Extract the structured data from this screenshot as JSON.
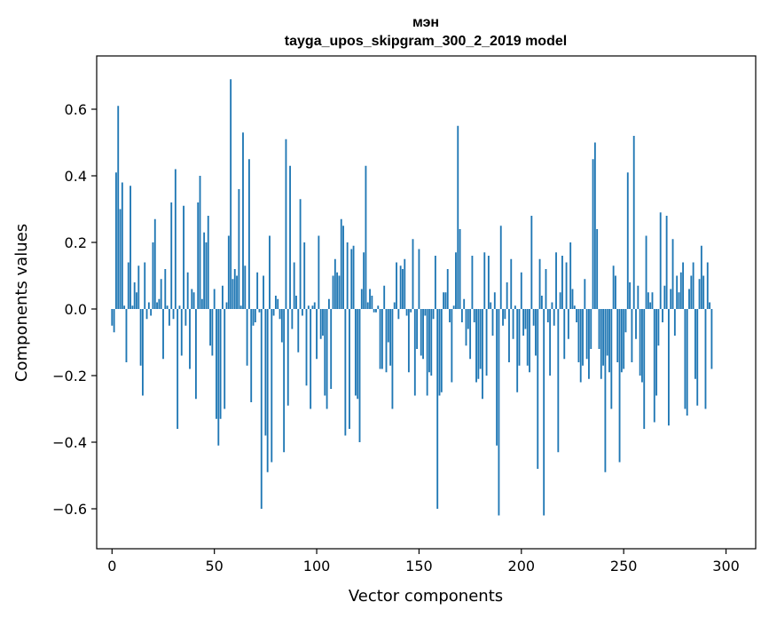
{
  "chart_data": {
    "type": "bar",
    "title_line1": "мэн",
    "title_line2": "tayga_upos_skipgram_300_2_2019 model",
    "xlabel": "Vector components",
    "ylabel": "Components values",
    "xlim": [
      -7.5,
      314.5
    ],
    "ylim": [
      -0.72,
      0.76
    ],
    "x_ticks": [
      0,
      50,
      100,
      150,
      200,
      250,
      300
    ],
    "x_tick_labels": [
      "0",
      "50",
      "100",
      "150",
      "200",
      "250",
      "300"
    ],
    "y_ticks": [
      -0.6,
      -0.4,
      -0.2,
      0.0,
      0.2,
      0.4,
      0.6
    ],
    "y_tick_labels": [
      "−0.6",
      "−0.4",
      "−0.2",
      "0.0",
      "0.2",
      "0.4",
      "0.6"
    ],
    "bar_color": "#1f77b4",
    "values": [
      -0.05,
      -0.07,
      0.41,
      0.61,
      0.3,
      0.38,
      0.01,
      -0.16,
      0.14,
      0.37,
      0.01,
      0.08,
      0.05,
      0.13,
      -0.17,
      -0.26,
      0.14,
      -0.03,
      0.02,
      -0.02,
      0.2,
      0.27,
      0.02,
      0.03,
      0.09,
      -0.15,
      0.12,
      0.01,
      -0.05,
      0.32,
      -0.03,
      0.42,
      -0.36,
      0.01,
      -0.14,
      0.31,
      -0.05,
      0.11,
      -0.18,
      0.06,
      0.05,
      -0.27,
      0.32,
      0.4,
      0.03,
      0.23,
      0.2,
      0.28,
      -0.11,
      -0.14,
      0.06,
      -0.33,
      -0.41,
      -0.33,
      0.07,
      -0.3,
      0.02,
      0.22,
      0.69,
      0.09,
      0.12,
      0.1,
      0.36,
      0.01,
      0.53,
      0.13,
      -0.17,
      0.45,
      -0.28,
      -0.05,
      -0.04,
      0.11,
      -0.01,
      -0.6,
      0.1,
      -0.38,
      -0.49,
      0.22,
      -0.46,
      -0.02,
      0.04,
      0.03,
      -0.03,
      -0.1,
      -0.43,
      0.51,
      -0.29,
      0.43,
      -0.06,
      0.14,
      0.04,
      -0.13,
      0.33,
      -0.02,
      0.2,
      -0.23,
      0.01,
      -0.3,
      0.01,
      0.02,
      -0.15,
      0.22,
      -0.09,
      -0.08,
      -0.26,
      -0.3,
      0.03,
      -0.24,
      0.1,
      0.15,
      0.11,
      0.1,
      0.27,
      0.25,
      -0.38,
      0.2,
      -0.36,
      0.18,
      0.19,
      -0.26,
      -0.27,
      -0.4,
      0.06,
      0.17,
      0.43,
      0.02,
      0.06,
      0.04,
      -0.01,
      -0.01,
      0.01,
      -0.18,
      -0.18,
      0.07,
      -0.19,
      -0.1,
      -0.17,
      -0.3,
      0.02,
      0.14,
      -0.03,
      0.13,
      0.12,
      0.15,
      -0.02,
      -0.19,
      -0.01,
      0.21,
      -0.26,
      -0.12,
      0.18,
      -0.14,
      -0.15,
      -0.02,
      -0.26,
      -0.19,
      -0.2,
      -0.03,
      0.16,
      -0.6,
      -0.26,
      -0.25,
      0.05,
      0.05,
      0.12,
      -0.04,
      -0.22,
      0.01,
      0.17,
      0.55,
      0.24,
      -0.04,
      0.03,
      -0.11,
      -0.06,
      -0.15,
      0.16,
      -0.04,
      -0.22,
      -0.21,
      -0.18,
      -0.27,
      0.17,
      -0.2,
      0.16,
      0.02,
      -0.08,
      0.05,
      -0.41,
      -0.62,
      0.25,
      -0.05,
      -0.03,
      0.08,
      -0.16,
      0.15,
      -0.09,
      0.01,
      -0.25,
      -0.17,
      0.11,
      -0.08,
      -0.06,
      -0.17,
      -0.19,
      0.28,
      -0.05,
      -0.14,
      -0.48,
      0.15,
      0.04,
      -0.62,
      0.12,
      -0.04,
      -0.2,
      0.02,
      -0.05,
      0.17,
      -0.43,
      0.05,
      0.16,
      -0.15,
      0.14,
      -0.09,
      0.2,
      0.06,
      0.01,
      -0.04,
      -0.16,
      -0.22,
      -0.17,
      0.09,
      -0.15,
      -0.21,
      -0.12,
      0.45,
      0.5,
      0.24,
      -0.12,
      -0.21,
      -0.17,
      -0.49,
      -0.14,
      -0.19,
      -0.3,
      0.13,
      0.1,
      -0.16,
      -0.46,
      -0.19,
      -0.18,
      -0.07,
      0.41,
      0.08,
      -0.16,
      0.52,
      -0.09,
      0.07,
      -0.2,
      -0.22,
      -0.36,
      0.22,
      0.05,
      0.02,
      0.05,
      -0.34,
      -0.26,
      -0.11,
      0.29,
      -0.04,
      0.07,
      0.28,
      -0.35,
      0.06,
      0.21,
      -0.08,
      0.1,
      0.05,
      0.11,
      0.14,
      -0.3,
      -0.32,
      0.06,
      0.1,
      0.14,
      -0.21,
      -0.29,
      0.09,
      0.19,
      0.1,
      -0.3,
      0.14,
      0.02,
      -0.18
    ]
  }
}
